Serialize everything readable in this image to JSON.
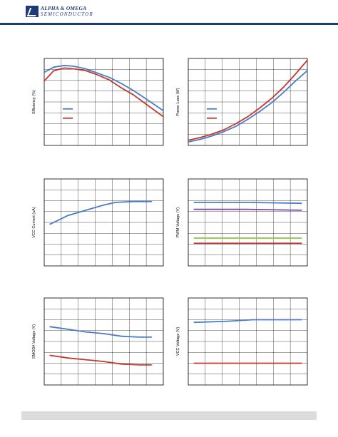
{
  "header": {
    "company_line1": "ALPHA & OMEGA",
    "company_line2": "SEMICONDUCTOR",
    "brand_color": "#1f3a7a"
  },
  "chart_data": [
    {
      "type": "line",
      "id": "efficiency",
      "ylabel": "Efficiency (%)",
      "xlim": [
        0,
        1
      ],
      "ylim": [
        0,
        1
      ],
      "grid": true,
      "legend": "middle-left",
      "series": [
        {
          "color": "#4a7bc8",
          "x": [
            0,
            0.08,
            0.17,
            0.25,
            0.35,
            0.45,
            0.55,
            0.65,
            0.75,
            0.85,
            1.0
          ],
          "y": [
            0.84,
            0.9,
            0.92,
            0.91,
            0.88,
            0.83,
            0.78,
            0.71,
            0.63,
            0.54,
            0.4
          ]
        },
        {
          "color": "#c0392b",
          "x": [
            0,
            0.08,
            0.17,
            0.25,
            0.35,
            0.45,
            0.55,
            0.65,
            0.75,
            0.85,
            1.0
          ],
          "y": [
            0.74,
            0.86,
            0.89,
            0.88,
            0.86,
            0.81,
            0.75,
            0.66,
            0.58,
            0.48,
            0.33
          ]
        }
      ]
    },
    {
      "type": "line",
      "id": "power-loss",
      "ylabel": "Power Loss (W)",
      "xlim": [
        0,
        1
      ],
      "ylim": [
        0,
        1
      ],
      "grid": true,
      "legend": "middle-left",
      "series": [
        {
          "color": "#4a7bc8",
          "x": [
            0,
            0.1,
            0.2,
            0.3,
            0.4,
            0.5,
            0.6,
            0.7,
            0.8,
            0.9,
            1.0
          ],
          "y": [
            0.04,
            0.07,
            0.11,
            0.16,
            0.22,
            0.3,
            0.39,
            0.49,
            0.61,
            0.74,
            0.86
          ]
        },
        {
          "color": "#c0392b",
          "x": [
            0,
            0.1,
            0.2,
            0.3,
            0.4,
            0.5,
            0.6,
            0.7,
            0.8,
            0.9,
            1.0
          ],
          "y": [
            0.06,
            0.09,
            0.13,
            0.18,
            0.25,
            0.33,
            0.43,
            0.54,
            0.67,
            0.82,
            0.98
          ]
        }
      ]
    },
    {
      "type": "line",
      "id": "vcc-current",
      "ylabel": "VCC Current (uA)",
      "xlim": [
        0,
        1
      ],
      "ylim": [
        0,
        1
      ],
      "grid": true,
      "series": [
        {
          "color": "#4a7bc8",
          "x": [
            0.05,
            0.2,
            0.35,
            0.5,
            0.6,
            0.75,
            0.9
          ],
          "y": [
            0.48,
            0.58,
            0.64,
            0.7,
            0.73,
            0.74,
            0.74
          ]
        }
      ]
    },
    {
      "type": "line",
      "id": "pwm-voltage",
      "ylabel": "PWM Voltage (V)",
      "xlim": [
        0,
        1
      ],
      "ylim": [
        0,
        1
      ],
      "grid": true,
      "series": [
        {
          "color": "#4a7bc8",
          "x": [
            0.05,
            0.5,
            0.95
          ],
          "y": [
            0.73,
            0.73,
            0.72
          ]
        },
        {
          "color": "#7b4fa8",
          "x": [
            0.05,
            0.5,
            0.95
          ],
          "y": [
            0.65,
            0.65,
            0.64
          ]
        },
        {
          "color": "#8dc63f",
          "x": [
            0.05,
            0.5,
            0.95
          ],
          "y": [
            0.32,
            0.32,
            0.32
          ]
        },
        {
          "color": "#c0392b",
          "x": [
            0.05,
            0.5,
            0.95
          ],
          "y": [
            0.26,
            0.26,
            0.26
          ]
        }
      ]
    },
    {
      "type": "line",
      "id": "smod-voltage",
      "ylabel": "SMOD# Voltage (V)",
      "xlim": [
        0,
        1
      ],
      "ylim": [
        0,
        1
      ],
      "grid": true,
      "series": [
        {
          "color": "#4a7bc8",
          "x": [
            0.05,
            0.2,
            0.35,
            0.5,
            0.65,
            0.8,
            0.9
          ],
          "y": [
            0.67,
            0.64,
            0.61,
            0.59,
            0.56,
            0.55,
            0.55
          ]
        },
        {
          "color": "#c0392b",
          "x": [
            0.05,
            0.2,
            0.35,
            0.5,
            0.65,
            0.8,
            0.9
          ],
          "y": [
            0.34,
            0.31,
            0.29,
            0.27,
            0.24,
            0.23,
            0.23
          ]
        }
      ]
    },
    {
      "type": "line",
      "id": "vcc-voltage",
      "ylabel": "VCC Voltage (V)",
      "xlim": [
        0,
        1
      ],
      "ylim": [
        0,
        1
      ],
      "grid": true,
      "series": [
        {
          "color": "#4a7bc8",
          "x": [
            0.05,
            0.3,
            0.55,
            0.8,
            0.95
          ],
          "y": [
            0.72,
            0.73,
            0.75,
            0.75,
            0.75
          ]
        },
        {
          "color": "#c0392b",
          "x": [
            0.05,
            0.3,
            0.55,
            0.8,
            0.95
          ],
          "y": [
            0.25,
            0.25,
            0.25,
            0.25,
            0.25
          ]
        }
      ]
    }
  ]
}
